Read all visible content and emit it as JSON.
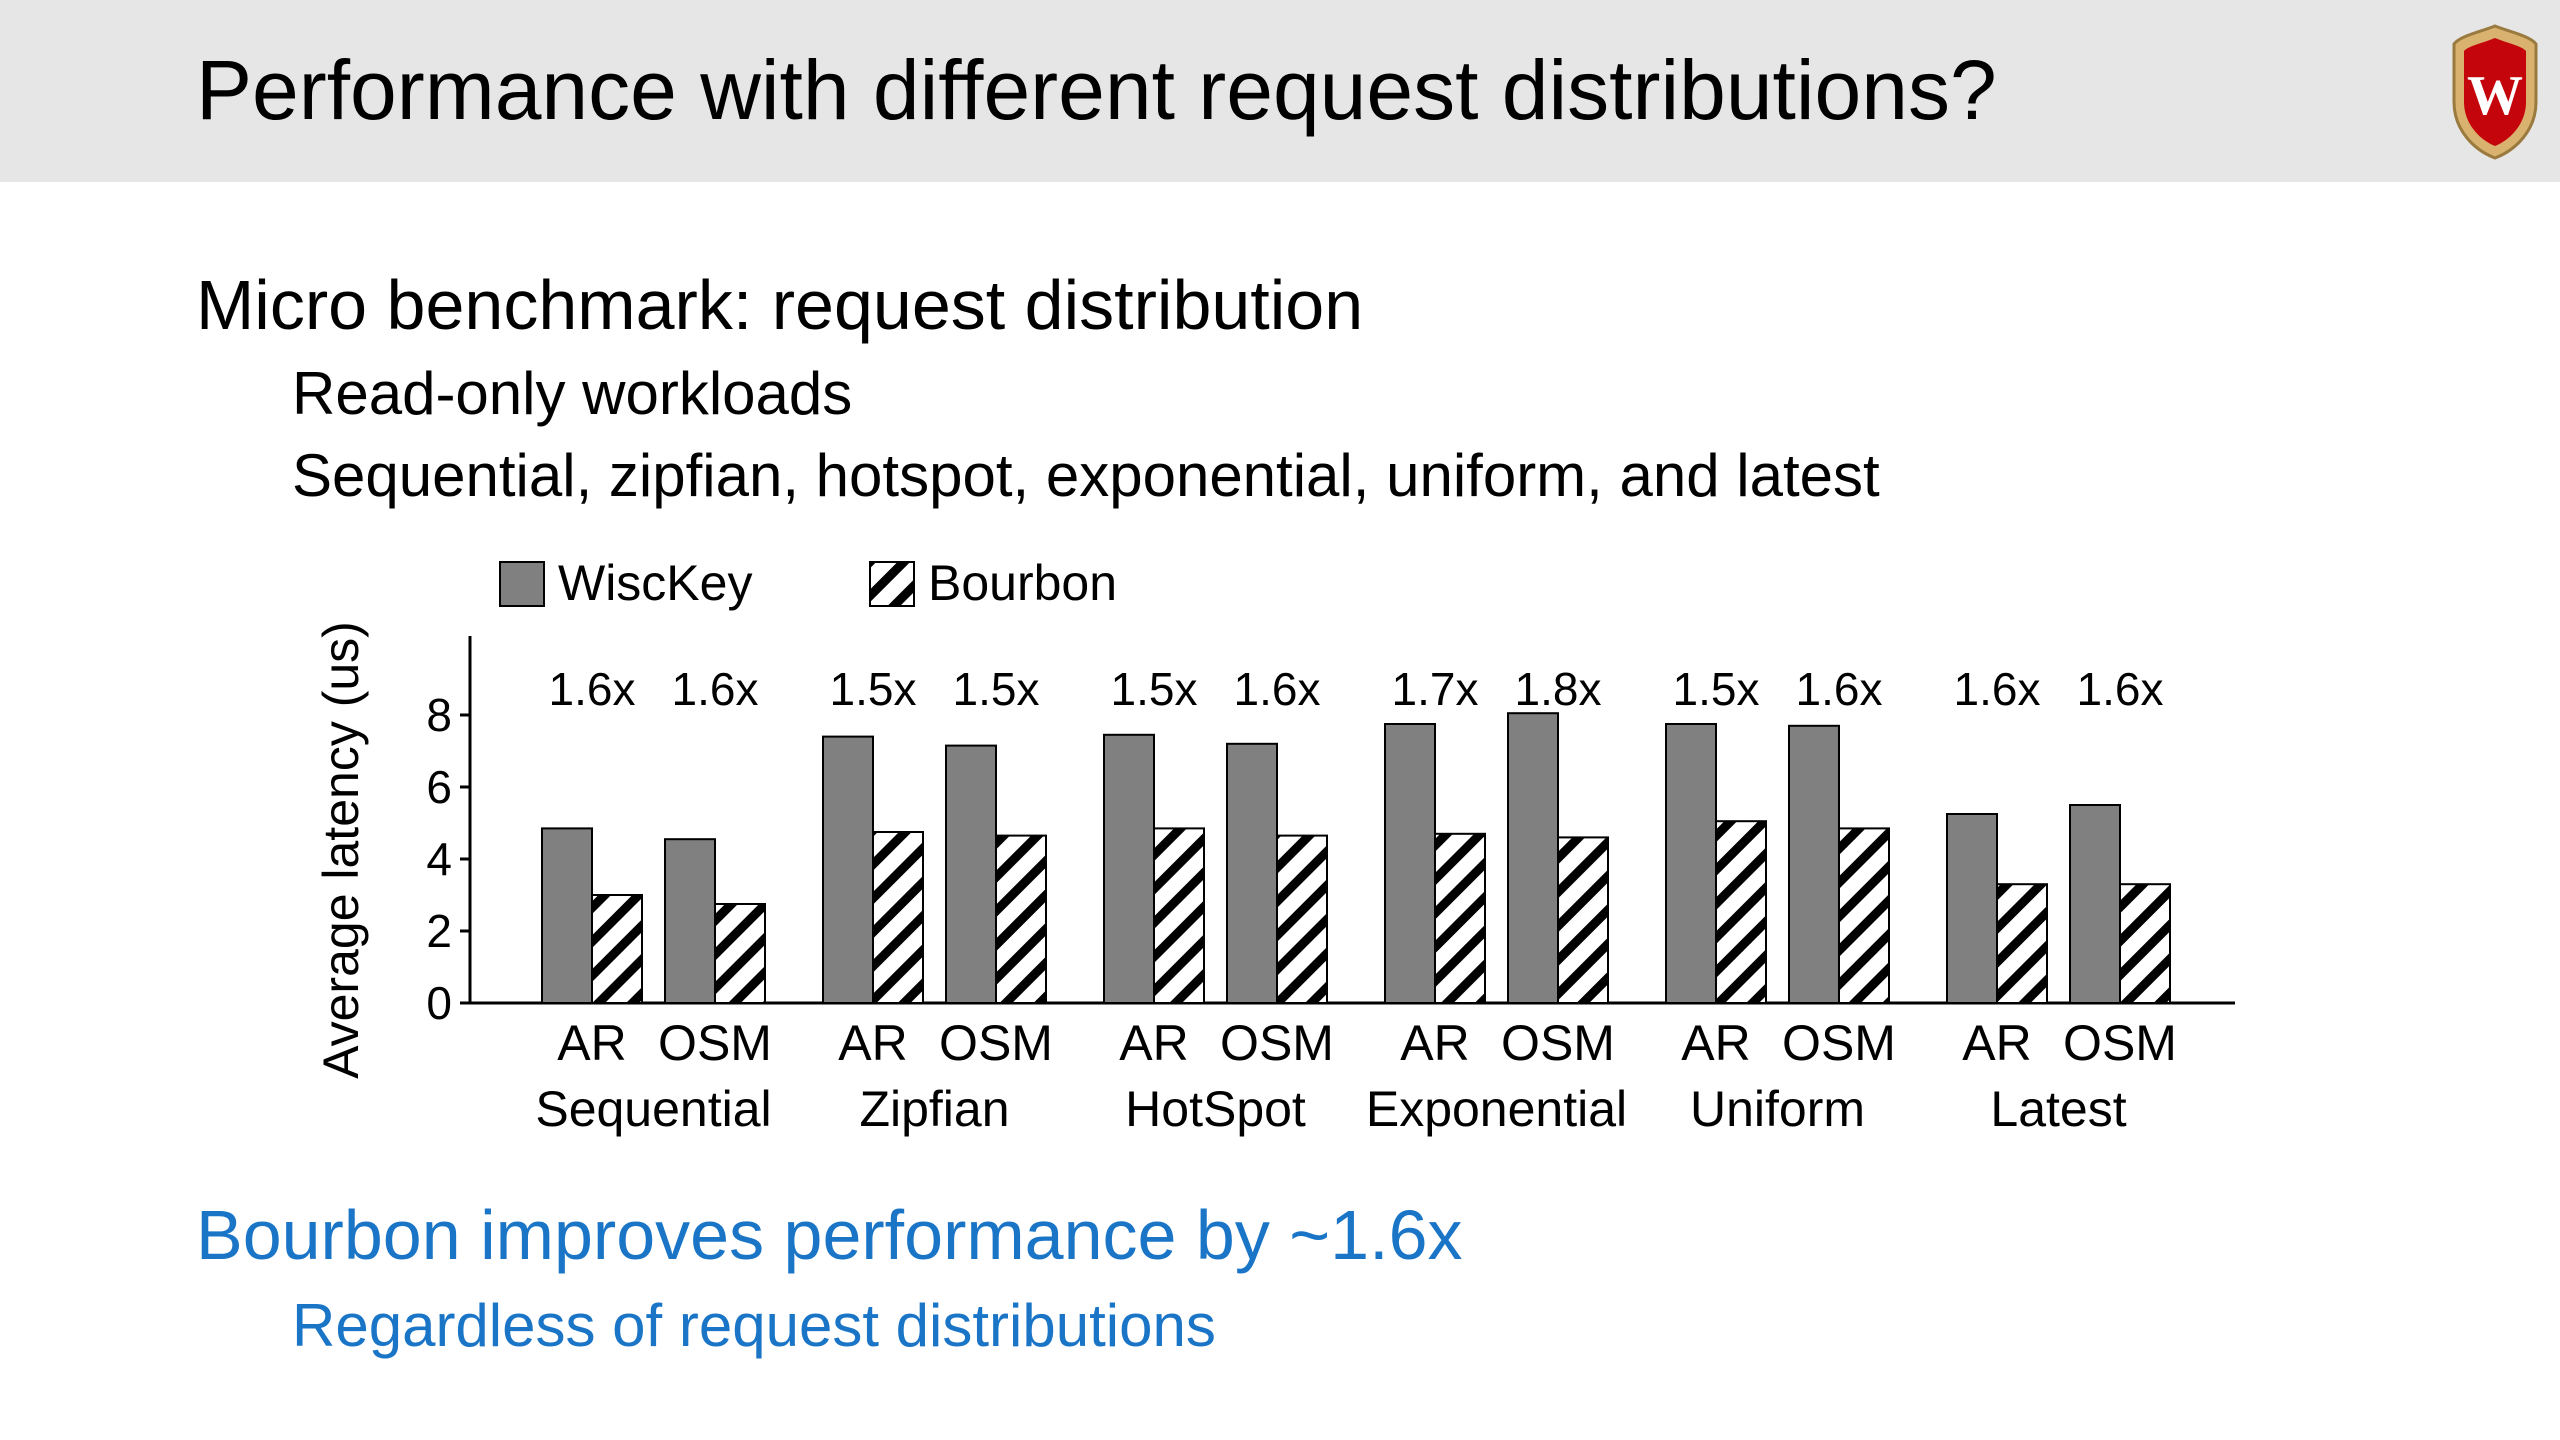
{
  "slide": {
    "title": "Performance with different request distributions?",
    "bullets": {
      "b1": "Micro benchmark: request distribution",
      "b2": "Read-only workloads",
      "b3": "Sequential, zipfian, hotspot, exponential, uniform, and latest",
      "b4": "Bourbon improves performance by ~1.6x",
      "b5": "Regardless of request distributions"
    },
    "logo": {
      "letter": "W",
      "colors": {
        "shield": "#c5050c",
        "border": "#d8b26e",
        "letter": "#ffffff"
      }
    },
    "accent_color": "#1a75c7"
  },
  "chart_data": {
    "type": "bar",
    "ylabel": "Average latency (us)",
    "ylim": [
      0,
      10
    ],
    "yticks": [
      "0",
      "2",
      "4",
      "6",
      "8"
    ],
    "legend": {
      "placement": "top-left",
      "entries": [
        {
          "name": "WiscKey",
          "style": "solid-gray",
          "color": "#808080"
        },
        {
          "name": "Bourbon",
          "style": "hatched",
          "color": "#000000"
        }
      ]
    },
    "groups": [
      {
        "name": "Sequential",
        "subgroups": [
          {
            "label": "AR",
            "wisckey": 4.85,
            "bourbon": 3.0,
            "speedup": "1.6x"
          },
          {
            "label": "OSM",
            "wisckey": 4.55,
            "bourbon": 2.75,
            "speedup": "1.6x"
          }
        ]
      },
      {
        "name": "Zipfian",
        "subgroups": [
          {
            "label": "AR",
            "wisckey": 7.4,
            "bourbon": 4.75,
            "speedup": "1.5x"
          },
          {
            "label": "OSM",
            "wisckey": 7.15,
            "bourbon": 4.65,
            "speedup": "1.5x"
          }
        ]
      },
      {
        "name": "HotSpot",
        "subgroups": [
          {
            "label": "AR",
            "wisckey": 7.45,
            "bourbon": 4.85,
            "speedup": "1.5x"
          },
          {
            "label": "OSM",
            "wisckey": 7.2,
            "bourbon": 4.65,
            "speedup": "1.6x"
          }
        ]
      },
      {
        "name": "Exponential",
        "subgroups": [
          {
            "label": "AR",
            "wisckey": 7.75,
            "bourbon": 4.7,
            "speedup": "1.7x"
          },
          {
            "label": "OSM",
            "wisckey": 8.05,
            "bourbon": 4.6,
            "speedup": "1.8x"
          }
        ]
      },
      {
        "name": "Uniform",
        "subgroups": [
          {
            "label": "AR",
            "wisckey": 7.75,
            "bourbon": 5.05,
            "speedup": "1.5x"
          },
          {
            "label": "OSM",
            "wisckey": 7.7,
            "bourbon": 4.85,
            "speedup": "1.6x"
          }
        ]
      },
      {
        "name": "Latest",
        "subgroups": [
          {
            "label": "AR",
            "wisckey": 5.25,
            "bourbon": 3.3,
            "speedup": "1.6x"
          },
          {
            "label": "OSM",
            "wisckey": 5.5,
            "bourbon": 3.3,
            "speedup": "1.6x"
          }
        ]
      }
    ],
    "grid": false
  }
}
